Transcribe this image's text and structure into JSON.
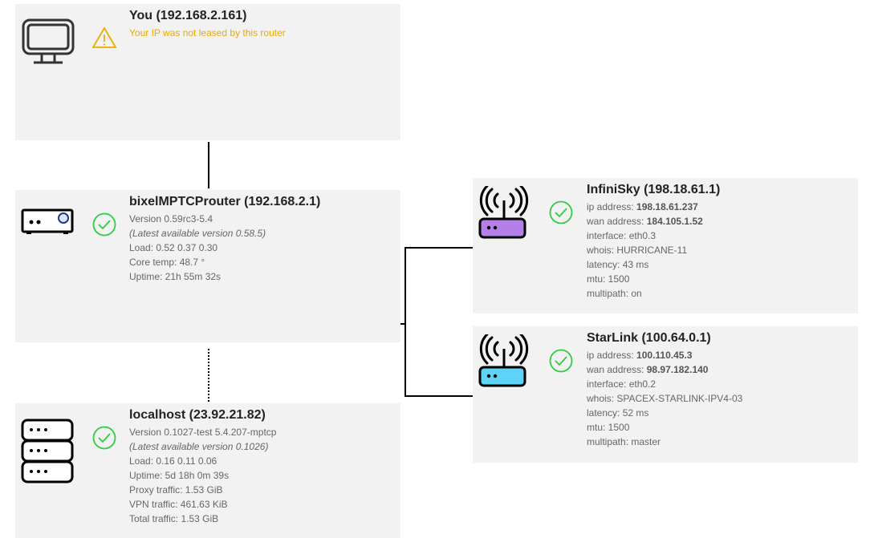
{
  "you": {
    "title": "You (192.168.2.161)",
    "warning": "Your IP was not leased by this router",
    "status_icon": "warning-icon",
    "device_icon": "monitor-icon",
    "warning_color": "#f0a800"
  },
  "router": {
    "title": "bixelMPTCProuter (192.168.2.1)",
    "status_icon": "check-circle-icon",
    "device_icon": "router-box-icon",
    "lines": [
      "Version 0.59rc3-5.4",
      "(Latest available version 0.58.5)",
      "Load: 0.52 0.37 0.30",
      "Core temp: 48.7 °",
      "Uptime: 21h 55m 32s"
    ]
  },
  "server": {
    "title": "localhost (23.92.21.82)",
    "status_icon": "check-circle-icon",
    "device_icon": "server-icon",
    "lines": [
      "Version 0.1027-test 5.4.207-mptcp",
      "(Latest available version 0.1026)",
      "Load: 0.16 0.11 0.06",
      "Uptime: 5d 18h 0m 39s",
      "Proxy traffic: 1.53 GiB",
      "VPN traffic: 461.63 KiB",
      "Total traffic: 1.53 GiB"
    ]
  },
  "wans": [
    {
      "title": "InfiniSky (198.18.61.1)",
      "color": "#b57ee8",
      "ip_label": "ip address: ",
      "ip": "198.18.61.237",
      "wan_label": "wan address: ",
      "wan": "184.105.1.52",
      "lines": [
        "interface: eth0.3",
        "whois: HURRICANE-11",
        "latency: 43 ms",
        "mtu: 1500",
        "multipath: on"
      ]
    },
    {
      "title": "StarLink (100.64.0.1)",
      "color": "#5fd3f5",
      "ip_label": "ip address: ",
      "ip": "100.110.45.3",
      "wan_label": "wan address: ",
      "wan": "98.97.182.140",
      "lines": [
        "interface: eth0.2",
        "whois: SPACEX-STARLINK-IPV4-03",
        "latency: 52 ms",
        "mtu: 1500",
        "multipath: master"
      ]
    }
  ],
  "status_color": "#2ecc40"
}
